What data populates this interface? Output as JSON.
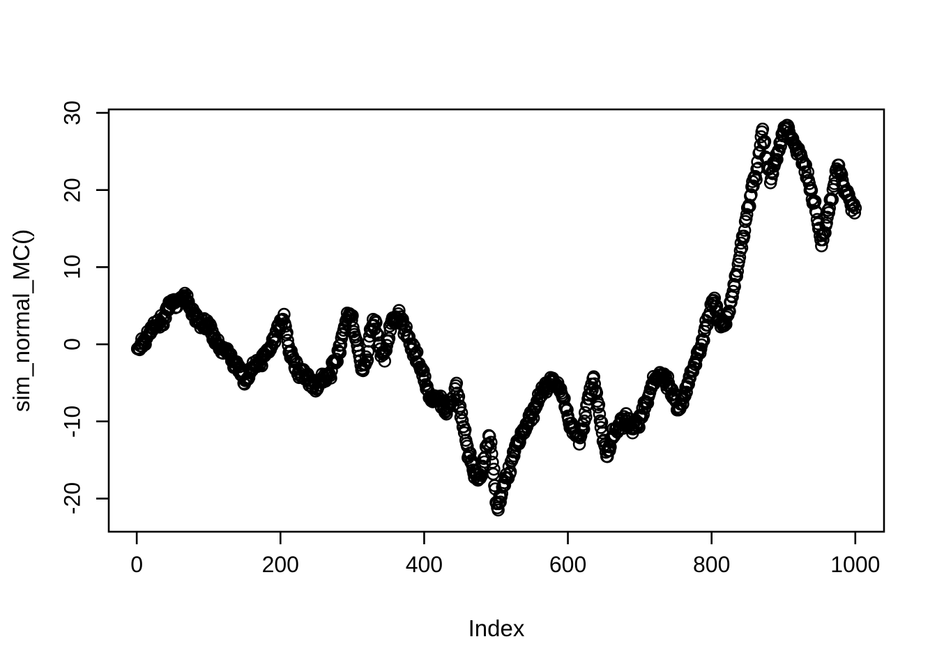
{
  "figure": {
    "background": "#ffffff",
    "foreground": "#000000"
  },
  "chart_data": {
    "type": "scatter",
    "title": "",
    "xlabel": "Index",
    "ylabel": "sim_normal_MC()",
    "x_ticks": [
      0,
      200,
      400,
      600,
      800,
      1000
    ],
    "y_ticks": [
      -20,
      -10,
      0,
      10,
      20,
      30
    ],
    "xlim": [
      -38.96,
      1039.96
    ],
    "ylim": [
      -24.3,
      30.45
    ],
    "grid": false,
    "legend": null,
    "n_points": 1000,
    "marker": {
      "shape": "open-circle",
      "color": "#000000",
      "radius_px": 8,
      "stroke_px": 2.6
    },
    "axis_color": "#000000",
    "jitter": {
      "seed": 1234567,
      "amplitude": 1.0
    },
    "waypoints_note": "Estimated [index, value] control points of the simulated random walk read from the plot; points between control points are linearly interpolated with small jitter.",
    "waypoints": [
      [
        0,
        -0.5
      ],
      [
        5,
        0.1
      ],
      [
        10,
        0.3
      ],
      [
        15,
        1.1
      ],
      [
        20,
        1.8
      ],
      [
        25,
        2.4
      ],
      [
        30,
        2.6
      ],
      [
        35,
        3.1
      ],
      [
        40,
        3.8
      ],
      [
        45,
        4.9
      ],
      [
        50,
        5.5
      ],
      [
        55,
        5.1
      ],
      [
        60,
        5.7
      ],
      [
        65,
        6.3
      ],
      [
        70,
        5.9
      ],
      [
        75,
        4.7
      ],
      [
        80,
        3.6
      ],
      [
        85,
        3.0
      ],
      [
        90,
        2.6
      ],
      [
        95,
        2.3
      ],
      [
        100,
        2.7
      ],
      [
        105,
        1.5
      ],
      [
        110,
        0.4
      ],
      [
        115,
        -0.2
      ],
      [
        120,
        -0.6
      ],
      [
        125,
        -1.0
      ],
      [
        130,
        -1.6
      ],
      [
        135,
        -2.2
      ],
      [
        140,
        -2.7
      ],
      [
        145,
        -3.7
      ],
      [
        150,
        -5.0
      ],
      [
        155,
        -4.3
      ],
      [
        160,
        -3.2
      ],
      [
        165,
        -2.7
      ],
      [
        170,
        -2.4
      ],
      [
        175,
        -1.8
      ],
      [
        180,
        -1.0
      ],
      [
        185,
        -0.5
      ],
      [
        190,
        0.5
      ],
      [
        195,
        1.6
      ],
      [
        200,
        2.7
      ],
      [
        205,
        3.6
      ],
      [
        208,
        1.7
      ],
      [
        212,
        -0.7
      ],
      [
        216,
        -1.7
      ],
      [
        220,
        -2.7
      ],
      [
        225,
        -3.3
      ],
      [
        230,
        -4.0
      ],
      [
        235,
        -4.4
      ],
      [
        240,
        -4.8
      ],
      [
        245,
        -5.2
      ],
      [
        250,
        -5.5
      ],
      [
        255,
        -5.0
      ],
      [
        260,
        -4.6
      ],
      [
        265,
        -4.3
      ],
      [
        270,
        -3.8
      ],
      [
        275,
        -2.6
      ],
      [
        280,
        -1.5
      ],
      [
        285,
        0.6
      ],
      [
        290,
        2.7
      ],
      [
        295,
        4.1
      ],
      [
        300,
        3.2
      ],
      [
        305,
        0.8
      ],
      [
        310,
        -1.6
      ],
      [
        315,
        -3.1
      ],
      [
        320,
        -2.2
      ],
      [
        325,
        1.0
      ],
      [
        330,
        2.9
      ],
      [
        335,
        1.4
      ],
      [
        340,
        -0.9
      ],
      [
        345,
        -1.3
      ],
      [
        350,
        1.2
      ],
      [
        355,
        2.6
      ],
      [
        360,
        3.2
      ],
      [
        365,
        3.7
      ],
      [
        370,
        2.8
      ],
      [
        375,
        1.4
      ],
      [
        380,
        0.4
      ],
      [
        385,
        -0.8
      ],
      [
        390,
        -1.5
      ],
      [
        395,
        -2.9
      ],
      [
        400,
        -4.7
      ],
      [
        405,
        -6.2
      ],
      [
        410,
        -7.1
      ],
      [
        415,
        -7.3
      ],
      [
        420,
        -6.8
      ],
      [
        425,
        -7.7
      ],
      [
        430,
        -8.5
      ],
      [
        435,
        -8.0
      ],
      [
        440,
        -7.2
      ],
      [
        445,
        -5.9
      ],
      [
        450,
        -8.1
      ],
      [
        455,
        -10.7
      ],
      [
        460,
        -13.7
      ],
      [
        465,
        -15.3
      ],
      [
        470,
        -16.7
      ],
      [
        475,
        -17.5
      ],
      [
        480,
        -16.4
      ],
      [
        485,
        -14.6
      ],
      [
        490,
        -12.1
      ],
      [
        493,
        -13.5
      ],
      [
        496,
        -15.9
      ],
      [
        499,
        -18.7
      ],
      [
        502,
        -21.7
      ],
      [
        505,
        -20.3
      ],
      [
        508,
        -18.9
      ],
      [
        512,
        -17.5
      ],
      [
        517,
        -16.7
      ],
      [
        522,
        -15.3
      ],
      [
        527,
        -13.7
      ],
      [
        532,
        -12.3
      ],
      [
        537,
        -11.5
      ],
      [
        542,
        -10.5
      ],
      [
        547,
        -9.9
      ],
      [
        552,
        -8.9
      ],
      [
        557,
        -7.7
      ],
      [
        562,
        -6.7
      ],
      [
        567,
        -5.9
      ],
      [
        572,
        -5.3
      ],
      [
        577,
        -4.9
      ],
      [
        582,
        -4.9
      ],
      [
        587,
        -5.7
      ],
      [
        592,
        -6.7
      ],
      [
        597,
        -8.1
      ],
      [
        602,
        -9.9
      ],
      [
        607,
        -11.1
      ],
      [
        612,
        -11.9
      ],
      [
        616,
        -12.5
      ],
      [
        620,
        -11.3
      ],
      [
        624,
        -9.7
      ],
      [
        627,
        -8.0
      ],
      [
        630,
        -6.6
      ],
      [
        633,
        -5.5
      ],
      [
        636,
        -4.7
      ],
      [
        639,
        -6.1
      ],
      [
        642,
        -8.0
      ],
      [
        645,
        -9.7
      ],
      [
        648,
        -11.5
      ],
      [
        651,
        -13.2
      ],
      [
        654,
        -14.6
      ],
      [
        658,
        -13.3
      ],
      [
        662,
        -12.0
      ],
      [
        666,
        -11.1
      ],
      [
        671,
        -10.6
      ],
      [
        676,
        -10.2
      ],
      [
        681,
        -9.8
      ],
      [
        686,
        -10.5
      ],
      [
        691,
        -11.0
      ],
      [
        696,
        -10.5
      ],
      [
        701,
        -9.6
      ],
      [
        706,
        -8.3
      ],
      [
        711,
        -7.0
      ],
      [
        716,
        -5.7
      ],
      [
        721,
        -4.8
      ],
      [
        726,
        -4.3
      ],
      [
        730,
        -3.9
      ],
      [
        735,
        -4.4
      ],
      [
        740,
        -5.3
      ],
      [
        745,
        -6.2
      ],
      [
        750,
        -7.5
      ],
      [
        755,
        -8.9
      ],
      [
        759,
        -7.5
      ],
      [
        764,
        -6.1
      ],
      [
        769,
        -4.7
      ],
      [
        774,
        -3.3
      ],
      [
        779,
        -1.9
      ],
      [
        784,
        -0.5
      ],
      [
        789,
        1.0
      ],
      [
        793,
        2.6
      ],
      [
        798,
        4.4
      ],
      [
        803,
        5.7
      ],
      [
        808,
        4.1
      ],
      [
        813,
        2.2
      ],
      [
        818,
        2.5
      ],
      [
        822,
        3.7
      ],
      [
        827,
        5.9
      ],
      [
        832,
        7.8
      ],
      [
        835,
        9.1
      ],
      [
        838,
        10.9
      ],
      [
        841,
        12.7
      ],
      [
        844,
        14.1
      ],
      [
        847,
        15.9
      ],
      [
        850,
        17.3
      ],
      [
        853,
        18.6
      ],
      [
        856,
        20.3
      ],
      [
        861,
        21.8
      ],
      [
        866,
        24.1
      ],
      [
        869,
        26.9
      ],
      [
        871,
        27.6
      ],
      [
        874,
        25.7
      ],
      [
        878,
        23.5
      ],
      [
        882,
        21.7
      ],
      [
        886,
        22.7
      ],
      [
        890,
        24.3
      ],
      [
        894,
        25.9
      ],
      [
        898,
        27.1
      ],
      [
        902,
        28.1
      ],
      [
        906,
        28.4
      ],
      [
        910,
        27.3
      ],
      [
        914,
        26.1
      ],
      [
        918,
        25.3
      ],
      [
        922,
        24.5
      ],
      [
        927,
        23.3
      ],
      [
        932,
        22.3
      ],
      [
        937,
        20.7
      ],
      [
        941,
        19.1
      ],
      [
        945,
        17.5
      ],
      [
        949,
        15.3
      ],
      [
        953,
        13.5
      ],
      [
        957,
        14.5
      ],
      [
        961,
        16.5
      ],
      [
        965,
        18.3
      ],
      [
        969,
        20.1
      ],
      [
        973,
        21.9
      ],
      [
        976,
        23.1
      ],
      [
        980,
        21.9
      ],
      [
        984,
        20.5
      ],
      [
        988,
        19.3
      ],
      [
        992,
        18.6
      ],
      [
        996,
        18.0
      ],
      [
        1000,
        17.4
      ]
    ]
  }
}
